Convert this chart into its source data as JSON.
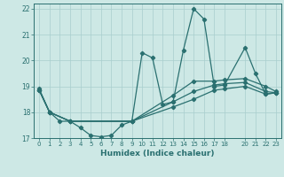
{
  "xlabel": "Humidex (Indice chaleur)",
  "bg_color": "#cde8e5",
  "line_color": "#2a7070",
  "grid_color": "#a8cece",
  "xlim": [
    -0.5,
    23.5
  ],
  "ylim": [
    17,
    22.2
  ],
  "yticks": [
    17,
    18,
    19,
    20,
    21,
    22
  ],
  "xticks": [
    0,
    1,
    2,
    3,
    4,
    5,
    6,
    7,
    8,
    9,
    10,
    11,
    12,
    13,
    14,
    15,
    16,
    17,
    18,
    20,
    21,
    22,
    23
  ],
  "xtick_labels": [
    "0",
    "1",
    "2",
    "3",
    "4",
    "5",
    "6",
    "7",
    "8",
    "9",
    "10",
    "11",
    "12",
    "13",
    "14",
    "15",
    "16",
    "17",
    "18",
    "20",
    "21",
    "22",
    "23"
  ],
  "series": [
    {
      "x": [
        0,
        1,
        2,
        3,
        4,
        5,
        6,
        7,
        8,
        9,
        10,
        11,
        12,
        13,
        14,
        15,
        16,
        17,
        18,
        20,
        21,
        22,
        23
      ],
      "y": [
        18.9,
        18.0,
        17.65,
        17.65,
        17.4,
        17.1,
        17.05,
        17.1,
        17.5,
        17.65,
        20.3,
        20.1,
        18.3,
        18.4,
        20.4,
        22.0,
        21.6,
        19.0,
        19.05,
        20.5,
        19.5,
        18.7,
        18.75
      ]
    },
    {
      "x": [
        0,
        1,
        3,
        9,
        13,
        15,
        17,
        18,
        20,
        22,
        23
      ],
      "y": [
        18.85,
        18.0,
        17.65,
        17.65,
        18.2,
        18.5,
        18.85,
        18.9,
        19.0,
        18.7,
        18.75
      ]
    },
    {
      "x": [
        0,
        1,
        3,
        9,
        13,
        15,
        17,
        18,
        20,
        22,
        23
      ],
      "y": [
        18.85,
        18.0,
        17.65,
        17.65,
        18.4,
        18.8,
        19.05,
        19.1,
        19.15,
        18.8,
        18.75
      ]
    },
    {
      "x": [
        0,
        1,
        3,
        9,
        13,
        15,
        17,
        18,
        20,
        22,
        23
      ],
      "y": [
        18.85,
        18.0,
        17.65,
        17.65,
        18.65,
        19.2,
        19.2,
        19.25,
        19.3,
        19.0,
        18.8
      ]
    }
  ]
}
